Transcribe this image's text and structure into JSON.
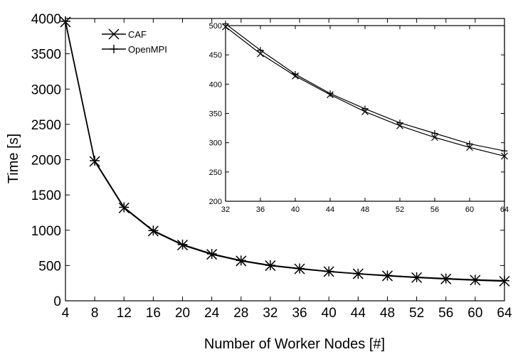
{
  "chart_data": [
    {
      "type": "line",
      "xlabel": "Number of Worker Nodes [#]",
      "ylabel": "Time [s]",
      "xlim": [
        4,
        64
      ],
      "ylim": [
        0,
        4000
      ],
      "xticks": [
        4,
        8,
        12,
        16,
        20,
        24,
        28,
        32,
        36,
        40,
        44,
        48,
        52,
        56,
        60,
        64
      ],
      "yticks": [
        0,
        500,
        1000,
        1500,
        2000,
        2500,
        3000,
        3500,
        4000
      ],
      "legend_position": "top-left",
      "x": [
        4,
        8,
        12,
        16,
        20,
        24,
        28,
        32,
        36,
        40,
        44,
        48,
        52,
        56,
        60,
        64
      ],
      "series": [
        {
          "name": "CAF",
          "marker": "x",
          "values": [
            3950,
            1975,
            1316,
            988,
            790,
            658,
            565,
            498,
            452,
            414,
            382,
            353,
            329,
            309,
            292,
            277
          ]
        },
        {
          "name": "OpenMPI",
          "marker": "+",
          "values": [
            3960,
            1985,
            1325,
            995,
            797,
            665,
            571,
            503,
            458,
            417,
            384,
            358,
            334,
            316,
            298,
            286
          ]
        }
      ]
    },
    {
      "type": "line",
      "inset": true,
      "xlim": [
        32,
        64
      ],
      "ylim": [
        200,
        500
      ],
      "xticks": [
        32,
        36,
        40,
        44,
        48,
        52,
        56,
        60,
        64
      ],
      "yticks": [
        200,
        250,
        300,
        350,
        400,
        450,
        500
      ],
      "x": [
        32,
        36,
        40,
        44,
        48,
        52,
        56,
        60,
        64
      ],
      "series": [
        {
          "name": "CAF",
          "marker": "x",
          "values": [
            498,
            452,
            414,
            382,
            353,
            329,
            309,
            292,
            277
          ]
        },
        {
          "name": "OpenMPI",
          "marker": "+",
          "values": [
            503,
            458,
            417,
            384,
            358,
            334,
            316,
            298,
            286
          ]
        }
      ]
    }
  ]
}
